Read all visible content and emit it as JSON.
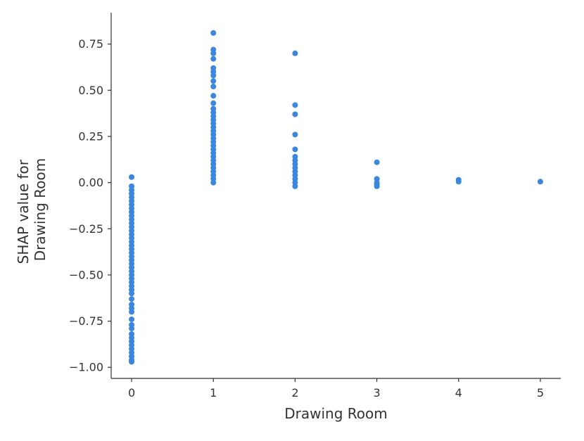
{
  "chart_data": {
    "type": "scatter",
    "xlabel": "Drawing Room",
    "ylabel_lines": [
      "SHAP value for",
      "Drawing Room"
    ],
    "xlim": [
      -0.25,
      5.25
    ],
    "ylim": [
      -1.06,
      0.92
    ],
    "x_ticks": [
      0,
      1,
      2,
      3,
      4,
      5
    ],
    "x_tick_labels": [
      "0",
      "1",
      "2",
      "3",
      "4",
      "5"
    ],
    "y_ticks": [
      0.75,
      0.5,
      0.25,
      0.0,
      -0.25,
      -0.5,
      -0.75,
      -1.0
    ],
    "y_tick_labels": [
      "0.75",
      "0.50",
      "0.25",
      "0.00",
      "−0.25",
      "−0.50",
      "−0.75",
      "−1.00"
    ],
    "grid": false,
    "point_color": "#3B87E0",
    "series": [
      {
        "x_value": 0,
        "y_values": [
          0.03,
          -0.02,
          -0.04,
          -0.06,
          -0.08,
          -0.1,
          -0.12,
          -0.14,
          -0.16,
          -0.18,
          -0.2,
          -0.22,
          -0.24,
          -0.26,
          -0.28,
          -0.3,
          -0.32,
          -0.34,
          -0.36,
          -0.38,
          -0.4,
          -0.42,
          -0.44,
          -0.46,
          -0.48,
          -0.5,
          -0.52,
          -0.54,
          -0.56,
          -0.58,
          -0.6,
          -0.63,
          -0.66,
          -0.68,
          -0.7,
          -0.74,
          -0.77,
          -0.79,
          -0.82,
          -0.84,
          -0.86,
          -0.88,
          -0.9,
          -0.92,
          -0.94,
          -0.96,
          -0.97
        ]
      },
      {
        "x_value": 1,
        "y_values": [
          0.81,
          0.72,
          0.7,
          0.67,
          0.62,
          0.6,
          0.58,
          0.55,
          0.52,
          0.47,
          0.43,
          0.4,
          0.38,
          0.36,
          0.34,
          0.32,
          0.3,
          0.28,
          0.26,
          0.24,
          0.22,
          0.2,
          0.18,
          0.16,
          0.14,
          0.12,
          0.1,
          0.08,
          0.06,
          0.04,
          0.02,
          0.0
        ]
      },
      {
        "x_value": 2,
        "y_values": [
          0.7,
          0.42,
          0.37,
          0.26,
          0.18,
          0.14,
          0.12,
          0.1,
          0.08,
          0.06,
          0.04,
          0.02,
          0.0,
          -0.02
        ]
      },
      {
        "x_value": 3,
        "y_values": [
          0.11,
          0.02,
          0.0,
          -0.01,
          -0.02
        ]
      },
      {
        "x_value": 4,
        "y_values": [
          0.015,
          0.005
        ]
      },
      {
        "x_value": 5,
        "y_values": [
          0.005
        ]
      }
    ]
  }
}
